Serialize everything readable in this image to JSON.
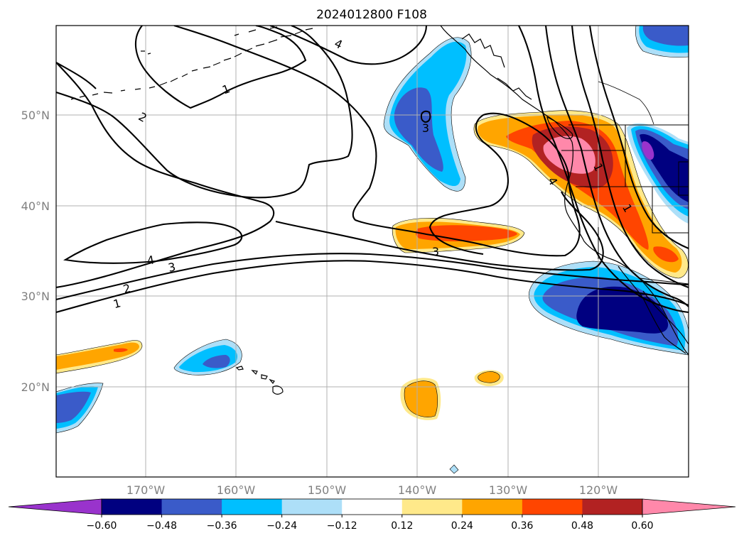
{
  "title": "2024012800 F108",
  "lat_labels": [
    "50°N",
    "40°N",
    "30°N",
    "20°N"
  ],
  "lon_labels": [
    "170°W",
    "160°W",
    "150°W",
    "140°W",
    "130°W",
    "120°W"
  ],
  "colorbar": {
    "ticks": [
      "−0.60",
      "−0.48",
      "−0.36",
      "−0.24",
      "−0.12",
      "0.12",
      "0.24",
      "0.36",
      "0.48",
      "0.60"
    ],
    "colors": [
      "#9933CC",
      "#000080",
      "#3A5BC9",
      "#00BFFF",
      "#ADDFF8",
      "#FFFFFF",
      "#FFE98A",
      "#FFA500",
      "#FF4500",
      "#B22222",
      "#FF88AA"
    ]
  },
  "contour_labels": [
    "1",
    "2",
    "4",
    "1",
    "3",
    "2",
    "1",
    "4",
    "3",
    "3",
    "4",
    "1"
  ],
  "colors": {
    "coast": "#000000",
    "grid": "#b0b0b0"
  }
}
